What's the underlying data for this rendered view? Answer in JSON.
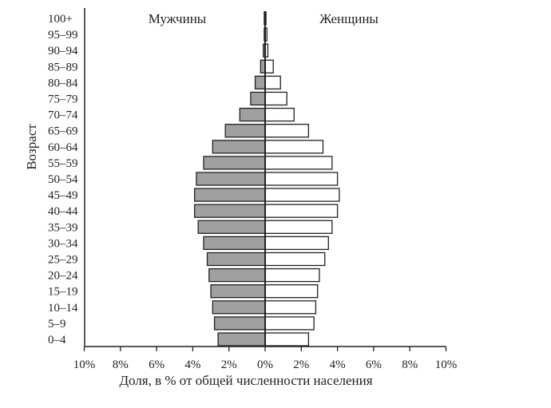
{
  "chart_data": {
    "type": "bar",
    "orientation": "horizontal",
    "categories": [
      "0–4",
      "5–9",
      "10–14",
      "15–19",
      "20–24",
      "25–29",
      "30–34",
      "35–39",
      "40–44",
      "45–49",
      "50–54",
      "55–59",
      "60–64",
      "65–69",
      "70–74",
      "75–79",
      "80–84",
      "85–89",
      "90–94",
      "95–99",
      "100+"
    ],
    "series": [
      {
        "name": "Мужчины",
        "values": [
          2.6,
          2.8,
          2.9,
          3.0,
          3.1,
          3.2,
          3.4,
          3.7,
          3.9,
          3.9,
          3.8,
          3.4,
          2.9,
          2.2,
          1.4,
          0.8,
          0.55,
          0.25,
          0.1,
          0.05,
          0.05
        ]
      },
      {
        "name": "Женщины",
        "values": [
          2.4,
          2.7,
          2.8,
          2.9,
          3.0,
          3.3,
          3.5,
          3.7,
          4.0,
          4.1,
          4.0,
          3.7,
          3.2,
          2.4,
          1.6,
          1.2,
          0.85,
          0.45,
          0.15,
          0.1,
          0.05
        ]
      }
    ],
    "ylabel": "Возраст",
    "xlabel": "Доля, в % от общей численности населения",
    "x_ticks": [
      "10%",
      "8%",
      "6%",
      "4%",
      "2%",
      "0%",
      "2%",
      "4%",
      "6%",
      "8%",
      "10%"
    ],
    "xlim": [
      -10,
      10
    ],
    "colors": {
      "Мужчины": "#a0a0a0",
      "Женщины": "#ffffff"
    },
    "legend": "top labels",
    "grid": false
  }
}
